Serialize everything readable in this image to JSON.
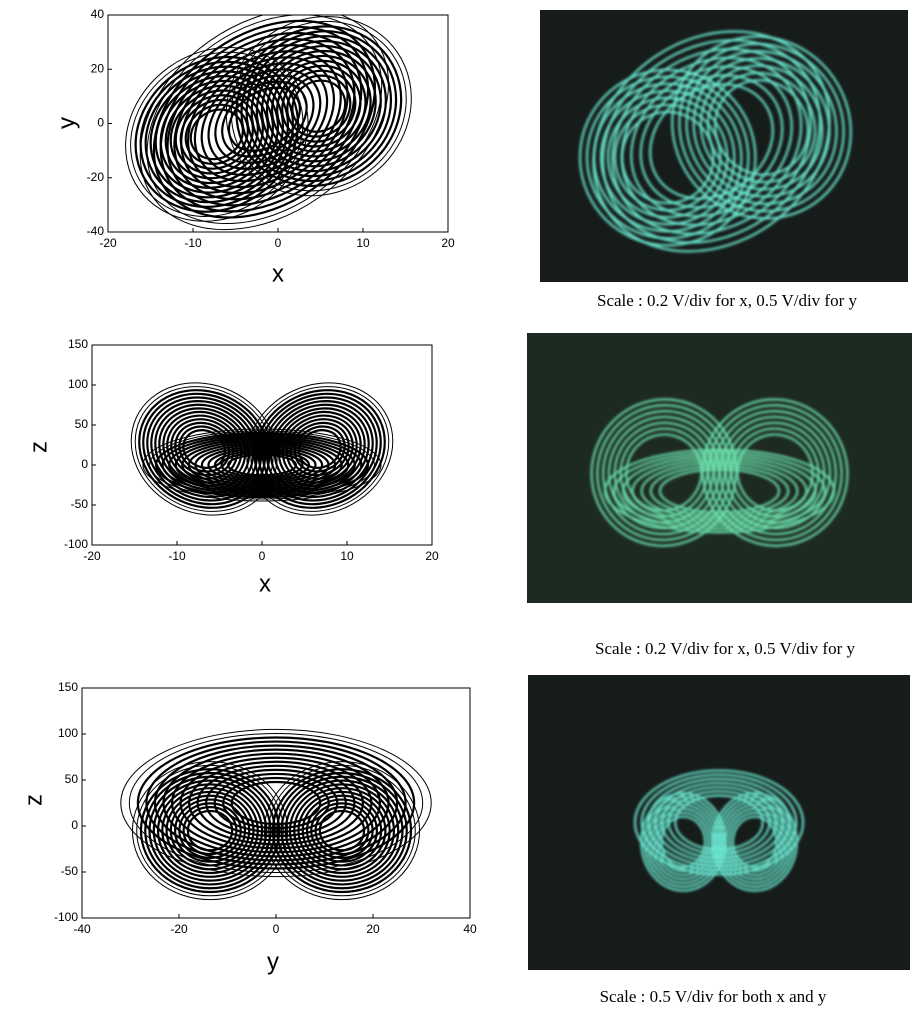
{
  "plots": [
    {
      "xlabel": "x",
      "ylabel": "y",
      "xlim": [
        -20,
        20
      ],
      "ylim": [
        -40,
        40
      ],
      "xticks": [
        -20,
        -10,
        0,
        10,
        20
      ],
      "yticks": [
        -40,
        -20,
        0,
        20,
        40
      ]
    },
    {
      "xlabel": "x",
      "ylabel": "z",
      "xlim": [
        -20,
        20
      ],
      "ylim": [
        -100,
        150
      ],
      "xticks": [
        -20,
        -10,
        0,
        10,
        20
      ],
      "yticks": [
        -100,
        -50,
        0,
        50,
        100,
        150
      ]
    },
    {
      "xlabel": "y",
      "ylabel": "z",
      "xlim": [
        -40,
        40
      ],
      "ylim": [
        -100,
        150
      ],
      "xticks": [
        -40,
        -20,
        0,
        20,
        40
      ],
      "yticks": [
        -100,
        -50,
        0,
        50,
        100,
        150
      ]
    }
  ],
  "captions": [
    "Scale : 0.2 V/div for x, 0.5 V/div for y",
    "Scale : 0.2 V/div for x, 0.5 V/div for y",
    "Scale : 0.5 V/div for both x and y"
  ]
}
